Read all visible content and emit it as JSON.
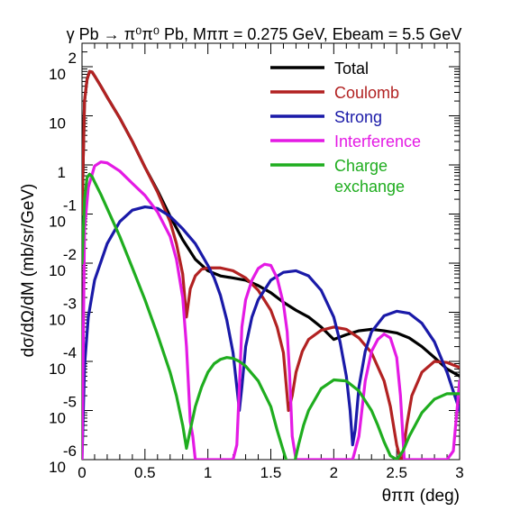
{
  "chart_data": {
    "type": "line",
    "title": "γ Pb → π⁰π⁰ Pb, Mππ = 0.275 GeV, Ebeam = 5.5 GeV",
    "xlabel": "θππ (deg)",
    "ylabel": "dσ/dΩ/dM (mb/sr/GeV)",
    "xlim": [
      0,
      3
    ],
    "ylim": [
      1e-06,
      300
    ],
    "yscale": "log",
    "x_ticks": [
      "0",
      "0.5",
      "1",
      "1.5",
      "2",
      "2.5",
      "3"
    ],
    "y_ticks": [
      {
        "base": "10",
        "exp": "2"
      },
      {
        "base": "10",
        "exp": ""
      },
      {
        "base": "1",
        "exp": ""
      },
      {
        "base": "10",
        "exp": "-1"
      },
      {
        "base": "10",
        "exp": "-2"
      },
      {
        "base": "10",
        "exp": "-3"
      },
      {
        "base": "10",
        "exp": "-4"
      },
      {
        "base": "10",
        "exp": "-5"
      },
      {
        "base": "10",
        "exp": "-6"
      }
    ],
    "legend_position": "top-right",
    "series": [
      {
        "name": "Total",
        "color": "#000000",
        "style": "line",
        "x": [
          0.0,
          0.02,
          0.04,
          0.06,
          0.08,
          0.1,
          0.15,
          0.2,
          0.3,
          0.4,
          0.5,
          0.6,
          0.7,
          0.8,
          0.9,
          1.0,
          1.1,
          1.2,
          1.3,
          1.4,
          1.5,
          1.6,
          1.7,
          1.8,
          1.9,
          2.0,
          2.1,
          2.2,
          2.3,
          2.4,
          2.5,
          2.6,
          2.7,
          2.8,
          2.9,
          3.0
        ],
        "y": [
          0.1,
          20,
          55,
          80,
          78,
          65,
          40,
          24,
          9,
          3,
          0.9,
          0.3,
          0.09,
          0.03,
          0.012,
          0.007,
          0.0055,
          0.005,
          0.0045,
          0.0035,
          0.0025,
          0.0016,
          0.0011,
          0.0008,
          0.0005,
          0.00028,
          0.00035,
          0.00042,
          0.00045,
          0.00042,
          0.00038,
          0.0003,
          0.0002,
          0.00012,
          7e-05,
          5e-05
        ]
      },
      {
        "name": "Coulomb",
        "color": "#b22222",
        "style": "line",
        "x": [
          0.0,
          0.02,
          0.04,
          0.06,
          0.08,
          0.1,
          0.15,
          0.2,
          0.3,
          0.4,
          0.5,
          0.6,
          0.7,
          0.75,
          0.8,
          0.83,
          0.86,
          0.9,
          0.95,
          1.0,
          1.1,
          1.2,
          1.3,
          1.4,
          1.5,
          1.55,
          1.6,
          1.64,
          1.67,
          1.7,
          1.75,
          1.8,
          1.9,
          2.0,
          2.1,
          2.2,
          2.3,
          2.4,
          2.45,
          2.5,
          2.54,
          2.58,
          2.62,
          2.7,
          2.8,
          2.9,
          3.0
        ],
        "y": [
          0.1,
          20,
          55,
          80,
          78,
          65,
          40,
          24,
          9,
          3,
          0.9,
          0.28,
          0.07,
          0.025,
          0.006,
          0.0008,
          0.003,
          0.0055,
          0.0075,
          0.008,
          0.008,
          0.007,
          0.005,
          0.0028,
          0.0011,
          0.0005,
          0.00015,
          1e-05,
          2e-05,
          6e-05,
          0.00016,
          0.00028,
          0.00043,
          0.0005,
          0.00045,
          0.0003,
          0.00015,
          4e-05,
          1.2e-05,
          2e-06,
          8e-07,
          5e-06,
          2e-05,
          6e-05,
          0.0001,
          9.5e-05,
          7.5e-05
        ]
      },
      {
        "name": "Strong",
        "color": "#1a1aa8",
        "style": "line",
        "x": [
          0.0,
          0.02,
          0.05,
          0.1,
          0.2,
          0.3,
          0.4,
          0.5,
          0.6,
          0.7,
          0.8,
          0.9,
          1.0,
          1.05,
          1.1,
          1.15,
          1.2,
          1.23,
          1.25,
          1.27,
          1.3,
          1.35,
          1.4,
          1.5,
          1.6,
          1.7,
          1.8,
          1.9,
          2.0,
          2.05,
          2.1,
          2.13,
          2.15,
          2.17,
          2.2,
          2.25,
          2.3,
          2.4,
          2.5,
          2.6,
          2.7,
          2.8,
          2.9,
          3.0
        ],
        "y": [
          1e-06,
          8e-05,
          0.0008,
          0.0045,
          0.025,
          0.07,
          0.12,
          0.14,
          0.13,
          0.09,
          0.05,
          0.025,
          0.009,
          0.005,
          0.0022,
          0.0007,
          0.00015,
          3e-05,
          1e-05,
          3e-05,
          0.0002,
          0.0008,
          0.0018,
          0.0045,
          0.0065,
          0.007,
          0.0055,
          0.0028,
          0.0008,
          0.00025,
          5e-05,
          1e-05,
          2e-06,
          4e-06,
          3e-05,
          0.00016,
          0.0004,
          0.00085,
          0.00105,
          0.00095,
          0.0006,
          0.00025,
          6e-05,
          1e-05
        ]
      },
      {
        "name": "Interference",
        "color": "#e41ae4",
        "style": "line",
        "x": [
          0.0,
          0.02,
          0.05,
          0.1,
          0.15,
          0.2,
          0.3,
          0.4,
          0.5,
          0.6,
          0.7,
          0.75,
          0.8,
          0.83,
          0.85,
          0.86,
          0.88,
          0.9,
          1.0,
          1.1,
          1.15,
          1.2,
          1.23,
          1.25,
          1.27,
          1.3,
          1.35,
          1.4,
          1.45,
          1.5,
          1.55,
          1.6,
          1.63,
          1.65,
          1.67,
          1.7,
          1.75,
          1.8,
          1.85,
          1.9,
          1.95,
          2.0,
          2.05,
          2.1,
          2.15,
          2.2,
          2.25,
          2.3,
          2.35,
          2.4,
          2.45,
          2.5,
          2.53,
          2.56,
          2.6,
          2.7,
          2.8,
          2.9,
          2.95,
          3.0
        ],
        "y": [
          1e-06,
          0.05,
          0.35,
          0.95,
          1.15,
          1.1,
          0.75,
          0.42,
          0.24,
          0.11,
          0.035,
          0.012,
          0.002,
          0.0002,
          2e-05,
          6e-06,
          3e-06,
          1e-06,
          1e-06,
          1e-06,
          1e-06,
          1e-06,
          2e-06,
          3e-05,
          0.0005,
          0.0018,
          0.0045,
          0.0078,
          0.0095,
          0.009,
          0.005,
          0.0015,
          0.0004,
          5e-05,
          3e-06,
          1e-06,
          1e-06,
          1e-06,
          1e-06,
          1e-06,
          1e-06,
          1e-06,
          1e-06,
          1e-06,
          1e-06,
          3e-06,
          4e-05,
          0.00016,
          0.00028,
          0.00036,
          0.0003,
          0.00012,
          2e-05,
          1e-06,
          1e-06,
          1e-06,
          1e-06,
          1e-06,
          1.5e-06,
          4e-05
        ]
      },
      {
        "name": "Charge\nexchange",
        "color": "#1fad1f",
        "style": "line",
        "x": [
          0.0,
          0.02,
          0.04,
          0.06,
          0.08,
          0.1,
          0.15,
          0.2,
          0.3,
          0.4,
          0.5,
          0.6,
          0.7,
          0.75,
          0.8,
          0.83,
          0.86,
          0.9,
          0.95,
          1.0,
          1.05,
          1.1,
          1.15,
          1.2,
          1.25,
          1.3,
          1.4,
          1.5,
          1.55,
          1.6,
          1.64,
          1.66,
          1.68,
          1.72,
          1.76,
          1.8,
          1.9,
          2.0,
          2.1,
          2.2,
          2.3,
          2.35,
          2.4,
          2.45,
          2.5,
          2.55,
          2.6,
          2.7,
          2.8,
          2.9,
          3.0
        ],
        "y": [
          0.01,
          0.2,
          0.55,
          0.65,
          0.58,
          0.45,
          0.25,
          0.13,
          0.035,
          0.008,
          0.0018,
          0.00035,
          6e-05,
          2e-05,
          5e-06,
          1.7e-06,
          4e-06,
          1.2e-05,
          3e-05,
          6e-05,
          9e-05,
          0.00011,
          0.00012,
          0.000115,
          0.0001,
          8e-05,
          4e-05,
          1.2e-05,
          4e-06,
          1.5e-06,
          7e-07,
          5e-07,
          7e-07,
          2e-06,
          5e-06,
          1e-05,
          2.8e-05,
          4.2e-05,
          4e-05,
          2.5e-05,
          1e-05,
          5e-06,
          2.3e-06,
          1.2e-06,
          1e-06,
          1.5e-06,
          3e-06,
          9e-06,
          1.7e-05,
          2.2e-05,
          2.2e-05
        ]
      }
    ]
  }
}
